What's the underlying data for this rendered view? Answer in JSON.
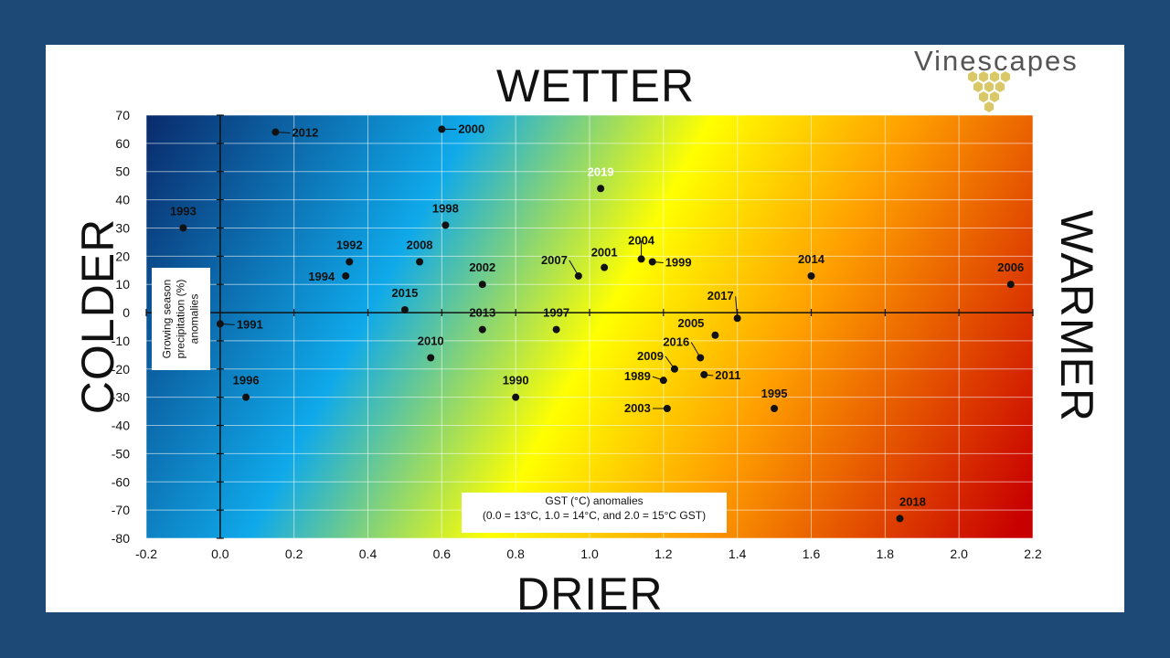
{
  "labels": {
    "top": "WETTER",
    "bottom": "DRIER",
    "left": "COLDER",
    "right": "WARMER"
  },
  "logo": {
    "text": "Vinescapes",
    "color": "#d9c865"
  },
  "colors": {
    "page_background": "#1c4976",
    "gradient_cold_wet": "#0a2a6b",
    "gradient_blue": "#0fa9ea",
    "gradient_yellow": "#ffff00",
    "gradient_orange": "#ffa000",
    "gradient_hot_dry": "#c80000",
    "point": "#111111"
  },
  "chart_data": {
    "type": "scatter",
    "title": "",
    "ylabel": "Growing season precipitation (%) anomalies",
    "xlabel_line1": "GST (°C) anomalies",
    "xlabel_line2": "(0.0 = 13°C, 1.0 = 14°C, and 2.0 = 15°C GST)",
    "xlim": [
      -0.2,
      2.2
    ],
    "ylim": [
      -80,
      70
    ],
    "x_ticks": [
      "-0.2",
      "0.0",
      "0.2",
      "0.4",
      "0.6",
      "0.8",
      "1.0",
      "1.2",
      "1.4",
      "1.6",
      "1.8",
      "2.0",
      "2.2"
    ],
    "y_ticks": [
      "70",
      "60",
      "50",
      "40",
      "30",
      "20",
      "10",
      "0",
      "-10",
      "-20",
      "-30",
      "-40",
      "-50",
      "-60",
      "-70",
      "-80"
    ],
    "grid": true,
    "background": "diagonal color gradient: dark blue (cold, wet) to yellow to red (warm, dry)",
    "points": [
      {
        "label": "1989",
        "x": 1.2,
        "y": -24
      },
      {
        "label": "1990",
        "x": 0.8,
        "y": -30
      },
      {
        "label": "1991",
        "x": 0.0,
        "y": -4
      },
      {
        "label": "1992",
        "x": 0.35,
        "y": 18
      },
      {
        "label": "1993",
        "x": -0.1,
        "y": 30
      },
      {
        "label": "1994",
        "x": 0.34,
        "y": 13
      },
      {
        "label": "1995",
        "x": 1.5,
        "y": -34
      },
      {
        "label": "1996",
        "x": 0.07,
        "y": -30
      },
      {
        "label": "1997",
        "x": 0.91,
        "y": -6
      },
      {
        "label": "1998",
        "x": 0.61,
        "y": 31
      },
      {
        "label": "1999",
        "x": 1.17,
        "y": 18
      },
      {
        "label": "2000",
        "x": 0.6,
        "y": 65
      },
      {
        "label": "2001",
        "x": 1.04,
        "y": 16
      },
      {
        "label": "2002",
        "x": 0.71,
        "y": 10
      },
      {
        "label": "2003",
        "x": 1.21,
        "y": -34
      },
      {
        "label": "2004",
        "x": 1.14,
        "y": 19
      },
      {
        "label": "2005",
        "x": 1.34,
        "y": -8
      },
      {
        "label": "2006",
        "x": 2.14,
        "y": 10
      },
      {
        "label": "2007",
        "x": 0.97,
        "y": 13
      },
      {
        "label": "2008",
        "x": 0.54,
        "y": 18
      },
      {
        "label": "2009",
        "x": 1.23,
        "y": -20
      },
      {
        "label": "2010",
        "x": 0.57,
        "y": -16
      },
      {
        "label": "2011",
        "x": 1.31,
        "y": -22
      },
      {
        "label": "2012",
        "x": 0.15,
        "y": 64
      },
      {
        "label": "2013",
        "x": 0.71,
        "y": -6
      },
      {
        "label": "2014",
        "x": 1.6,
        "y": 13
      },
      {
        "label": "2015",
        "x": 0.5,
        "y": 1
      },
      {
        "label": "2016",
        "x": 1.3,
        "y": -16
      },
      {
        "label": "2017",
        "x": 1.4,
        "y": -2
      },
      {
        "label": "2018",
        "x": 1.84,
        "y": -73
      },
      {
        "label": "2019",
        "x": 1.03,
        "y": 44
      }
    ]
  }
}
